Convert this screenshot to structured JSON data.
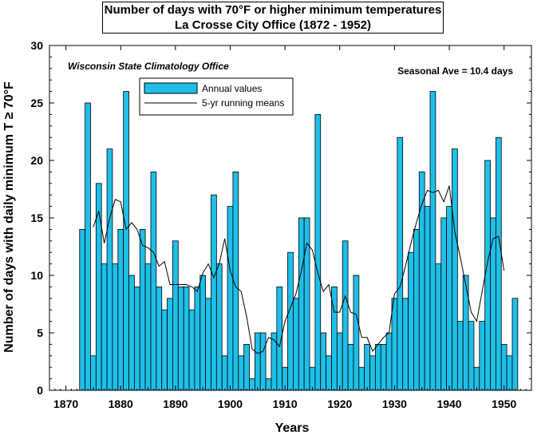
{
  "title": "Number of days with 70°F or higher minimum temperatures",
  "subtitle": "La Crosse City Office (1872 - 1952)",
  "colors": {
    "bar": "#1fbfe8",
    "line": "#000000",
    "axis": "#000000"
  },
  "annotations": {
    "source": "Wisconsin State Climatology Office",
    "seasonal": "Seasonal Ave = 10.4 days"
  },
  "chart_data": {
    "type": "bar",
    "xlabel": "Years",
    "ylabel": "Number of days with daily minimum T ≥ 70°F",
    "xlim": [
      1867,
      1955
    ],
    "ylim": [
      0,
      30
    ],
    "x_ticks": [
      1870,
      1880,
      1890,
      1900,
      1910,
      1920,
      1930,
      1940,
      1950
    ],
    "y_ticks": [
      0,
      5,
      10,
      15,
      20,
      25,
      30
    ],
    "legend": {
      "placement": "top-left",
      "entries": [
        "Annual values",
        "5-yr running means"
      ]
    },
    "series": [
      {
        "name": "Annual values",
        "type": "bar",
        "x": [
          1873,
          1874,
          1875,
          1876,
          1877,
          1878,
          1879,
          1880,
          1881,
          1882,
          1883,
          1884,
          1885,
          1886,
          1887,
          1888,
          1889,
          1890,
          1891,
          1892,
          1893,
          1894,
          1895,
          1896,
          1897,
          1898,
          1899,
          1900,
          1901,
          1902,
          1903,
          1904,
          1905,
          1906,
          1907,
          1908,
          1909,
          1910,
          1911,
          1912,
          1913,
          1914,
          1915,
          1916,
          1917,
          1918,
          1919,
          1920,
          1921,
          1922,
          1923,
          1924,
          1925,
          1926,
          1927,
          1928,
          1929,
          1930,
          1931,
          1932,
          1933,
          1934,
          1935,
          1936,
          1937,
          1938,
          1939,
          1940,
          1941,
          1942,
          1943,
          1944,
          1945,
          1946,
          1947,
          1948,
          1949,
          1950,
          1951,
          1952
        ],
        "values": [
          14,
          25,
          3,
          18,
          11,
          21,
          11,
          14,
          26,
          10,
          9,
          14,
          11,
          19,
          9,
          7,
          8,
          13,
          9,
          9,
          7,
          9,
          10,
          8,
          17,
          11,
          3,
          16,
          19,
          3,
          4,
          1,
          5,
          5,
          1,
          5,
          9,
          2,
          12,
          8,
          15,
          15,
          2,
          24,
          5,
          3,
          9,
          5,
          13,
          4,
          10,
          2,
          4,
          3,
          4,
          4,
          5,
          8,
          22,
          8,
          12,
          14,
          19,
          16,
          26,
          11,
          15,
          16,
          21,
          6,
          10,
          6,
          2,
          6,
          20,
          15,
          22,
          4,
          3,
          8
        ]
      },
      {
        "name": "5-yr running means",
        "type": "line",
        "x": [
          1875,
          1876,
          1877,
          1878,
          1879,
          1880,
          1881,
          1882,
          1883,
          1884,
          1885,
          1886,
          1887,
          1888,
          1889,
          1890,
          1891,
          1892,
          1893,
          1894,
          1895,
          1896,
          1897,
          1898,
          1899,
          1900,
          1901,
          1902,
          1903,
          1904,
          1905,
          1906,
          1907,
          1908,
          1909,
          1910,
          1911,
          1912,
          1913,
          1914,
          1915,
          1916,
          1917,
          1918,
          1919,
          1920,
          1921,
          1922,
          1923,
          1924,
          1925,
          1926,
          1927,
          1928,
          1929,
          1930,
          1931,
          1932,
          1933,
          1934,
          1935,
          1936,
          1937,
          1938,
          1939,
          1940,
          1941,
          1942,
          1943,
          1944,
          1945,
          1946,
          1947,
          1948,
          1949,
          1950
        ],
        "values": [
          14.2,
          15.6,
          12.8,
          15.0,
          16.6,
          16.4,
          14.0,
          14.6,
          14.0,
          12.6,
          12.4,
          12.0,
          10.8,
          11.2,
          9.2,
          9.2,
          9.2,
          9.2,
          9.0,
          8.6,
          10.2,
          11.0,
          9.8,
          11.0,
          13.2,
          10.4,
          9.0,
          8.6,
          6.4,
          3.6,
          3.2,
          3.4,
          4.6,
          4.4,
          3.8,
          6.0,
          7.2,
          8.4,
          10.4,
          12.8,
          12.2,
          10.2,
          8.6,
          9.2,
          6.8,
          6.8,
          8.2,
          6.8,
          6.6,
          4.6,
          4.6,
          3.4,
          4.0,
          4.6,
          5.0,
          8.4,
          9.0,
          10.8,
          12.8,
          14.6,
          16.2,
          17.4,
          17.2,
          17.4,
          16.4,
          17.8,
          13.8,
          11.6,
          9.2,
          6.8,
          6.0,
          8.6,
          11.2,
          13.2,
          13.4,
          10.4
        ]
      }
    ]
  }
}
